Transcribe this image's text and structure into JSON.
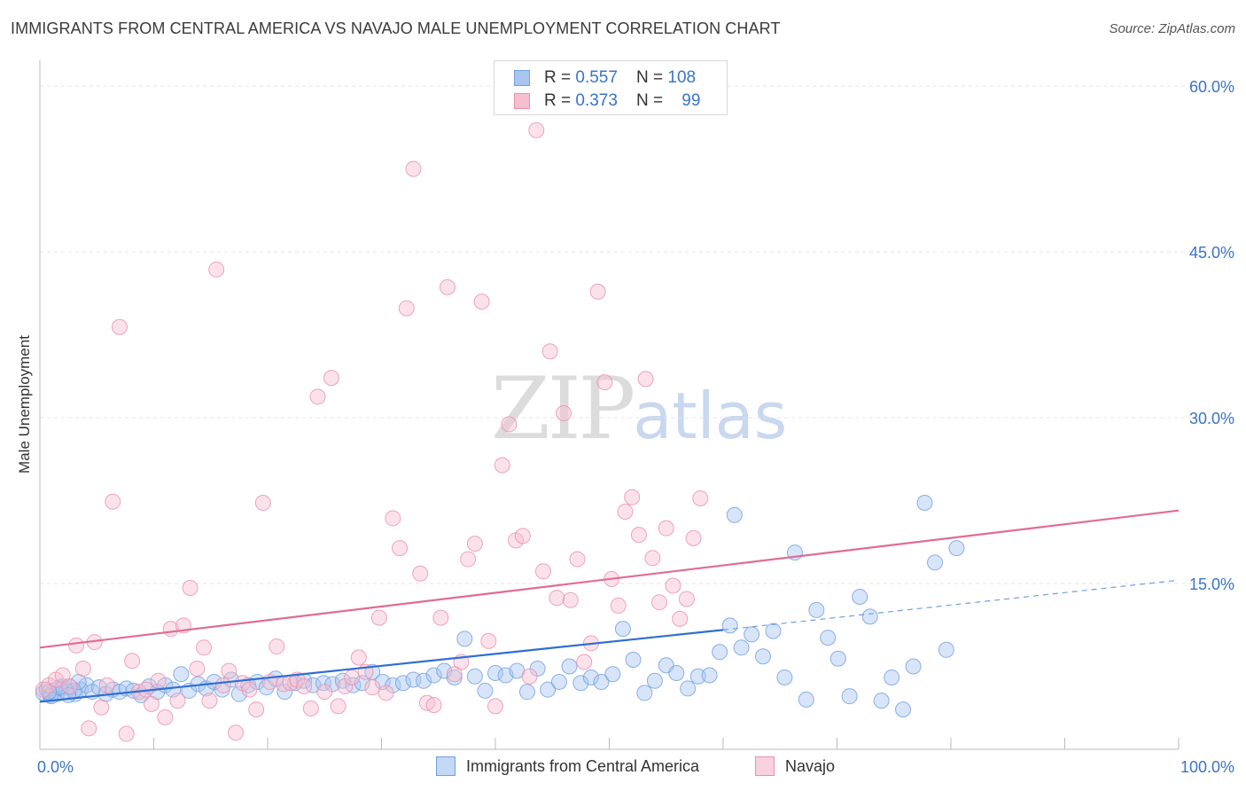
{
  "header": {
    "title": "IMMIGRANTS FROM CENTRAL AMERICA VS NAVAJO MALE UNEMPLOYMENT CORRELATION CHART",
    "source": "Source: ZipAtlas.com"
  },
  "watermark": {
    "zip": "ZIP",
    "atlas": "atlas"
  },
  "legend": {
    "rows": [
      {
        "r_label": "R = ",
        "r_value": "0.557",
        "n_label": "N = ",
        "n_value": "108",
        "color": "#a8c6f0",
        "border": "#6f9fe0"
      },
      {
        "r_label": "R = ",
        "r_value": "0.373",
        "n_label": "N = ",
        "n_value": "99",
        "color": "#f6bfd0",
        "border": "#eb8fad"
      }
    ]
  },
  "bottom_legend": {
    "series1": "Immigrants from Central America",
    "series2": "Navajo"
  },
  "chart_data": {
    "type": "scatter",
    "title": "IMMIGRANTS FROM CENTRAL AMERICA VS NAVAJO MALE UNEMPLOYMENT CORRELATION CHART",
    "xlabel": "",
    "ylabel": "Male Unemployment",
    "xlim": [
      0,
      100
    ],
    "ylim": [
      0,
      63
    ],
    "x_tick_labels": [
      "0.0%",
      "100.0%"
    ],
    "y_ticks": [
      15,
      30,
      45,
      60
    ],
    "y_tick_labels": [
      "15.0%",
      "30.0%",
      "45.0%",
      "60.0%"
    ],
    "grid": true,
    "legend_position": "top-center",
    "series": [
      {
        "name": "Immigrants from Central America",
        "color": "#6f9fe0",
        "fill": "#a8c6f0",
        "trend": {
          "x": [
            0,
            60
          ],
          "y": [
            4.3,
            10.8
          ],
          "dashed_to": [
            100,
            15.3
          ]
        },
        "points": [
          [
            0.3,
            5.1
          ],
          [
            0.6,
            5.4
          ],
          [
            0.9,
            4.9
          ],
          [
            1.2,
            5.3
          ],
          [
            1.5,
            5.0
          ],
          [
            1.9,
            5.5
          ],
          [
            2.3,
            5.2
          ],
          [
            2.7,
            5.6
          ],
          [
            3.1,
            5.0
          ],
          [
            3.6,
            5.4
          ],
          [
            4.1,
            5.8
          ],
          [
            4.6,
            5.2
          ],
          [
            5.2,
            5.6
          ],
          [
            5.8,
            5.0
          ],
          [
            6.4,
            5.4
          ],
          [
            7.0,
            5.2
          ],
          [
            7.6,
            5.5
          ],
          [
            8.2,
            5.3
          ],
          [
            8.9,
            4.9
          ],
          [
            9.6,
            5.7
          ],
          [
            10.3,
            5.2
          ],
          [
            11.0,
            5.8
          ],
          [
            11.7,
            5.4
          ],
          [
            12.4,
            6.8
          ],
          [
            13.1,
            5.3
          ],
          [
            13.9,
            5.9
          ],
          [
            14.6,
            5.5
          ],
          [
            15.3,
            6.1
          ],
          [
            16.0,
            5.4
          ],
          [
            16.8,
            6.3
          ],
          [
            17.5,
            5.0
          ],
          [
            18.3,
            5.8
          ],
          [
            19.1,
            6.1
          ],
          [
            19.9,
            5.6
          ],
          [
            20.7,
            6.4
          ],
          [
            21.5,
            5.2
          ],
          [
            22.4,
            6.0
          ],
          [
            23.2,
            6.2
          ],
          [
            24.0,
            5.8
          ],
          [
            24.9,
            6.0
          ],
          [
            25.7,
            5.9
          ],
          [
            26.6,
            6.2
          ],
          [
            27.5,
            5.8
          ],
          [
            28.3,
            6.0
          ],
          [
            29.2,
            7.0
          ],
          [
            30.1,
            6.1
          ],
          [
            31.0,
            5.8
          ],
          [
            31.9,
            6.0
          ],
          [
            32.8,
            6.3
          ],
          [
            33.7,
            6.2
          ],
          [
            34.6,
            6.7
          ],
          [
            35.5,
            7.1
          ],
          [
            36.4,
            6.5
          ],
          [
            37.3,
            10.0
          ],
          [
            38.2,
            6.6
          ],
          [
            39.1,
            5.3
          ],
          [
            40.0,
            6.9
          ],
          [
            40.9,
            6.7
          ],
          [
            41.9,
            7.1
          ],
          [
            42.8,
            5.2
          ],
          [
            43.7,
            7.3
          ],
          [
            44.6,
            5.4
          ],
          [
            45.6,
            6.1
          ],
          [
            46.5,
            7.5
          ],
          [
            47.5,
            6.0
          ],
          [
            48.4,
            6.5
          ],
          [
            49.3,
            6.1
          ],
          [
            50.3,
            6.8
          ],
          [
            51.2,
            10.9
          ],
          [
            52.1,
            8.1
          ],
          [
            53.1,
            5.1
          ],
          [
            54.0,
            6.2
          ],
          [
            55.0,
            7.6
          ],
          [
            55.9,
            6.9
          ],
          [
            56.9,
            5.5
          ],
          [
            57.8,
            6.6
          ],
          [
            58.8,
            6.7
          ],
          [
            59.7,
            8.8
          ],
          [
            60.6,
            11.2
          ],
          [
            61.6,
            9.2
          ],
          [
            62.5,
            10.4
          ],
          [
            63.5,
            8.4
          ],
          [
            64.4,
            10.7
          ],
          [
            65.4,
            6.5
          ],
          [
            66.3,
            17.8
          ],
          [
            67.3,
            4.5
          ],
          [
            68.2,
            12.6
          ],
          [
            69.2,
            10.1
          ],
          [
            70.1,
            8.2
          ],
          [
            71.1,
            4.8
          ],
          [
            72.0,
            13.8
          ],
          [
            72.9,
            12.0
          ],
          [
            73.9,
            4.4
          ],
          [
            74.8,
            6.5
          ],
          [
            75.8,
            3.6
          ],
          [
            76.7,
            7.5
          ],
          [
            77.7,
            22.3
          ],
          [
            78.6,
            16.9
          ],
          [
            79.6,
            9.0
          ],
          [
            80.5,
            18.2
          ],
          [
            61.0,
            21.2
          ],
          [
            1.0,
            4.8
          ],
          [
            2.0,
            5.7
          ],
          [
            3.0,
            5.3
          ],
          [
            2.5,
            4.9
          ],
          [
            1.7,
            5.6
          ],
          [
            0.8,
            5.2
          ],
          [
            3.4,
            6.1
          ]
        ]
      },
      {
        "name": "Navajo",
        "color": "#eb8fad",
        "fill": "#f6bfd0",
        "trend": {
          "x": [
            0,
            100
          ],
          "y": [
            9.2,
            21.6
          ]
        },
        "points": [
          [
            0.3,
            5.4
          ],
          [
            0.8,
            5.8
          ],
          [
            1.4,
            6.3
          ],
          [
            2.0,
            6.7
          ],
          [
            2.6,
            5.7
          ],
          [
            3.2,
            9.4
          ],
          [
            3.8,
            7.3
          ],
          [
            4.3,
            1.9
          ],
          [
            4.8,
            9.7
          ],
          [
            5.4,
            3.8
          ],
          [
            5.9,
            5.8
          ],
          [
            6.4,
            22.4
          ],
          [
            7.0,
            38.2
          ],
          [
            7.6,
            1.4
          ],
          [
            8.1,
            8.0
          ],
          [
            8.7,
            5.2
          ],
          [
            9.3,
            5.4
          ],
          [
            9.8,
            4.1
          ],
          [
            10.4,
            6.2
          ],
          [
            11.0,
            2.9
          ],
          [
            11.5,
            10.9
          ],
          [
            12.1,
            4.4
          ],
          [
            12.6,
            11.2
          ],
          [
            13.2,
            14.6
          ],
          [
            13.8,
            7.3
          ],
          [
            14.4,
            9.2
          ],
          [
            14.9,
            4.4
          ],
          [
            15.5,
            43.4
          ],
          [
            16.1,
            5.8
          ],
          [
            16.6,
            7.1
          ],
          [
            17.2,
            1.5
          ],
          [
            17.8,
            6.0
          ],
          [
            18.4,
            5.4
          ],
          [
            19.0,
            3.6
          ],
          [
            19.6,
            22.3
          ],
          [
            20.2,
            6.1
          ],
          [
            20.8,
            9.3
          ],
          [
            21.4,
            5.9
          ],
          [
            22.0,
            6.0
          ],
          [
            22.6,
            6.3
          ],
          [
            23.2,
            5.7
          ],
          [
            23.8,
            3.7
          ],
          [
            24.4,
            31.9
          ],
          [
            25.0,
            5.2
          ],
          [
            25.6,
            33.6
          ],
          [
            26.2,
            3.9
          ],
          [
            26.8,
            5.7
          ],
          [
            27.4,
            6.5
          ],
          [
            28.0,
            8.3
          ],
          [
            28.6,
            7.0
          ],
          [
            29.2,
            5.6
          ],
          [
            29.8,
            11.9
          ],
          [
            30.4,
            5.1
          ],
          [
            31.0,
            20.9
          ],
          [
            31.6,
            18.2
          ],
          [
            32.2,
            39.9
          ],
          [
            32.8,
            52.5
          ],
          [
            33.4,
            15.9
          ],
          [
            34.0,
            4.2
          ],
          [
            34.6,
            4.0
          ],
          [
            35.2,
            11.9
          ],
          [
            35.8,
            41.8
          ],
          [
            36.4,
            6.8
          ],
          [
            37.0,
            7.9
          ],
          [
            37.6,
            17.2
          ],
          [
            38.2,
            18.6
          ],
          [
            38.8,
            40.5
          ],
          [
            39.4,
            9.8
          ],
          [
            40.0,
            3.9
          ],
          [
            40.6,
            25.7
          ],
          [
            41.2,
            29.4
          ],
          [
            41.8,
            18.9
          ],
          [
            42.4,
            19.3
          ],
          [
            43.0,
            6.6
          ],
          [
            43.6,
            56.0
          ],
          [
            44.2,
            16.1
          ],
          [
            44.8,
            36.0
          ],
          [
            45.4,
            13.7
          ],
          [
            46.0,
            30.4
          ],
          [
            46.6,
            13.5
          ],
          [
            47.2,
            17.2
          ],
          [
            47.8,
            7.9
          ],
          [
            48.4,
            9.6
          ],
          [
            49.0,
            41.4
          ],
          [
            49.6,
            33.2
          ],
          [
            50.2,
            15.4
          ],
          [
            50.8,
            13.0
          ],
          [
            51.4,
            21.5
          ],
          [
            52.0,
            22.8
          ],
          [
            52.6,
            19.4
          ],
          [
            53.2,
            33.5
          ],
          [
            53.8,
            17.3
          ],
          [
            54.4,
            13.3
          ],
          [
            55.0,
            20.0
          ],
          [
            55.6,
            14.8
          ],
          [
            56.2,
            11.8
          ],
          [
            56.8,
            13.6
          ],
          [
            57.4,
            19.1
          ],
          [
            58.0,
            22.7
          ]
        ]
      }
    ]
  }
}
